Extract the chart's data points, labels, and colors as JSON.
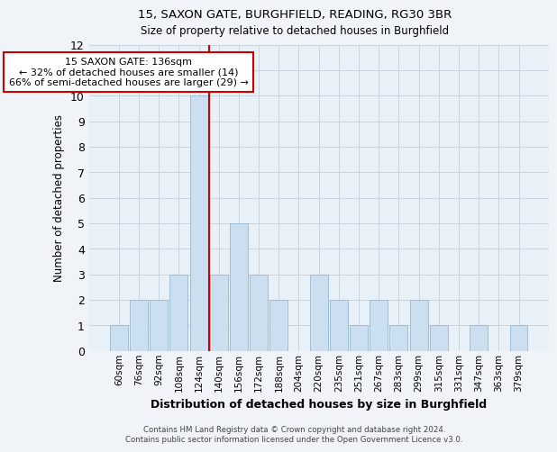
{
  "title1": "15, SAXON GATE, BURGHFIELD, READING, RG30 3BR",
  "title2": "Size of property relative to detached houses in Burghfield",
  "xlabel": "Distribution of detached houses by size in Burghfield",
  "ylabel": "Number of detached properties",
  "categories": [
    "60sqm",
    "76sqm",
    "92sqm",
    "108sqm",
    "124sqm",
    "140sqm",
    "156sqm",
    "172sqm",
    "188sqm",
    "204sqm",
    "220sqm",
    "235sqm",
    "251sqm",
    "267sqm",
    "283sqm",
    "299sqm",
    "315sqm",
    "331sqm",
    "347sqm",
    "363sqm",
    "379sqm"
  ],
  "values": [
    1,
    2,
    2,
    3,
    10,
    3,
    5,
    3,
    2,
    0,
    3,
    2,
    1,
    2,
    1,
    2,
    1,
    0,
    1,
    0,
    1
  ],
  "bar_color": "#ccdff0",
  "bar_edge_color": "#a0bdd4",
  "vline_color": "#cc0000",
  "vline_x": 4.5,
  "ylim": [
    0,
    12
  ],
  "yticks": [
    0,
    1,
    2,
    3,
    4,
    5,
    6,
    7,
    8,
    9,
    10,
    11,
    12
  ],
  "annotation_text": "15 SAXON GATE: 136sqm\n← 32% of detached houses are smaller (14)\n66% of semi-detached houses are larger (29) →",
  "annotation_box_color": "#cc0000",
  "grid_color": "#c8d4e0",
  "footer1": "Contains HM Land Registry data © Crown copyright and database right 2024.",
  "footer2": "Contains public sector information licensed under the Open Government Licence v3.0.",
  "bg_color": "#f0f4f8",
  "plot_bg_color": "#e8f0f8"
}
